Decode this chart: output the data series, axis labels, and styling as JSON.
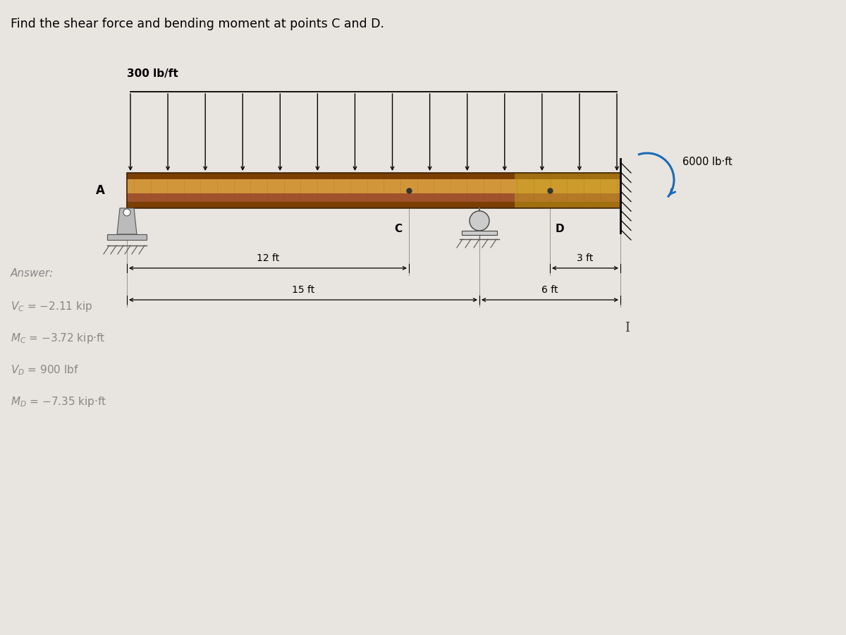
{
  "title": "Find the shear force and bending moment at points C and D.",
  "load_label": "300 lb/ft",
  "moment_label": "6000 lb·ft",
  "answer_header": "Answer:",
  "ans1": "V",
  "ans1sub": "C",
  "ans1val": " = −2.11 kip",
  "ans2": "M",
  "ans2sub": "C",
  "ans2val": " = −3.72 kip·ft",
  "ans3": "V",
  "ans3sub": "D",
  "ans3val": " = 900 lbf",
  "ans4": "M",
  "ans4sub": "D",
  "ans4val": " = −7.35 kip·ft",
  "dim_12ft": "12 ft",
  "dim_15ft": "15 ft",
  "dim_3ft": "3 ft",
  "dim_6ft": "6 ft",
  "bg_color": "#e8e4e0",
  "beam_color_dark": "#7B3F00",
  "beam_color_mid": "#A0522D",
  "beam_color_light": "#D2963A",
  "moment_color": "#1a6ab5"
}
